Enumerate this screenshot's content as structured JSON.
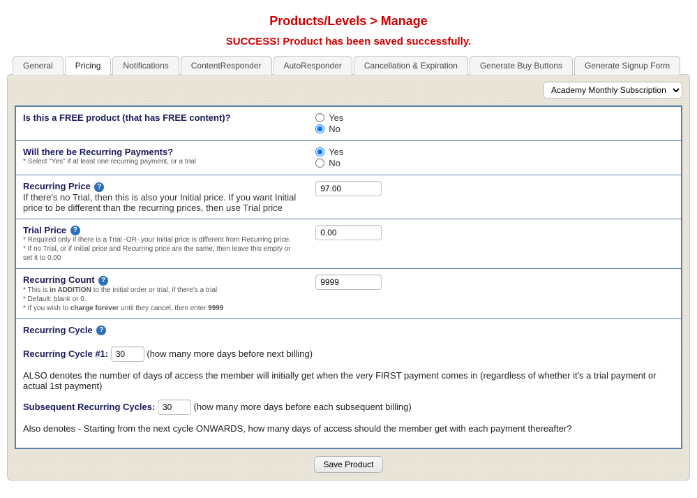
{
  "colors": {
    "accent_red": "#cc0000",
    "accent_blue_border": "#5a7fa8",
    "label_navy": "#1a1a5a",
    "panel_bg": "#eae6da"
  },
  "header": {
    "breadcrumb": "Products/Levels > Manage",
    "success_message": "SUCCESS! Product has been saved successfully."
  },
  "tabs": {
    "items": [
      {
        "label": "General"
      },
      {
        "label": "Pricing"
      },
      {
        "label": "Notifications"
      },
      {
        "label": "ContentResponder"
      },
      {
        "label": "AutoResponder"
      },
      {
        "label": "Cancellation & Expiration"
      },
      {
        "label": "Generate Buy Buttons"
      },
      {
        "label": "Generate Signup Form"
      }
    ],
    "active_index": 1
  },
  "product_select": {
    "selected": "Academy Monthly Subscription"
  },
  "form": {
    "free_product": {
      "label": "Is this a FREE product (that has FREE content)?",
      "yes": "Yes",
      "no": "No",
      "value": "no"
    },
    "recurring_payments": {
      "label": "Will there be Recurring Payments?",
      "hint_prefix": "* Select \"Yes\" if at least one recurring payment, or a trial",
      "yes": "Yes",
      "no": "No",
      "value": "yes"
    },
    "recurring_price": {
      "label": "Recurring Price",
      "desc": "If there's no Trial, then this is also your Initial price. If you want Initial price to be different than the recurring prices, then use Trial price",
      "value": "97.00"
    },
    "trial_price": {
      "label": "Trial Price",
      "hint_l1": "* Required only if there is a Trial -OR- your Initial price is different from Recurring price.",
      "hint_l2": "* If no Trial, or if Initial price and Recurring price are the same, then leave this empty or set it to 0.00",
      "value": "0.00"
    },
    "recurring_count": {
      "label": "Recurring Count",
      "hint_l1_pre": "* This is ",
      "hint_l1_strong": "in ADDITION",
      "hint_l1_post": " to the initial order or trial, if there's a trial",
      "hint_l2": "* Default: blank or 0.",
      "hint_l3_pre": "* If you wish to ",
      "hint_l3_strong1": "charge forever",
      "hint_l3_mid": " until they cancel, then enter ",
      "hint_l3_strong2": "9999",
      "value": "9999"
    },
    "recurring_cycle": {
      "heading": "Recurring Cycle",
      "cycle1_label": "Recurring Cycle #1:",
      "cycle1_value": "30",
      "cycle1_suffix": "(how many more days before next billing)",
      "cycle1_desc": "ALSO denotes the number of days of access the member will initially get when the very FIRST payment comes in (regardless of whether it's a trial payment or actual 1st payment)",
      "subsequent_label": "Subsequent Recurring Cycles:",
      "subsequent_value": "30",
      "subsequent_suffix": "(how many more days before each subsequent billing)",
      "subsequent_desc": "Also denotes - Starting from the next cycle ONWARDS, how many days of access should the member get with each payment thereafter?"
    }
  },
  "buttons": {
    "save": "Save Product"
  }
}
